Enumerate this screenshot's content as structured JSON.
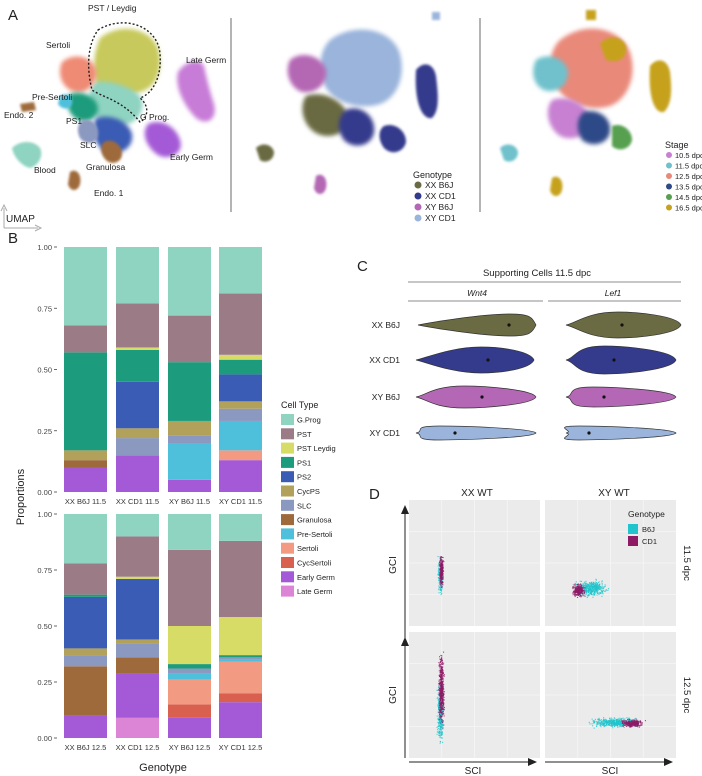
{
  "panels": {
    "A": {
      "letter": "A",
      "axis_label": "UMAP",
      "cluster_labels": [
        {
          "key": "pst",
          "text": "PST / Leydig"
        },
        {
          "key": "sertoli",
          "text": "Sertoli"
        },
        {
          "key": "late_germ",
          "text": "Late Germ"
        },
        {
          "key": "pre_sertoli",
          "text": "Pre-Sertoli"
        },
        {
          "key": "endo2",
          "text": "Endo. 2"
        },
        {
          "key": "ps1",
          "text": "PS1"
        },
        {
          "key": "gprog",
          "text": "G Prog."
        },
        {
          "key": "slc",
          "text": "SLC"
        },
        {
          "key": "granulosa",
          "text": "Granulosa"
        },
        {
          "key": "blood",
          "text": "Blood"
        },
        {
          "key": "early_germ",
          "text": "Early Germ"
        },
        {
          "key": "endo1",
          "text": "Endo. 1"
        }
      ],
      "genotype_legend": {
        "title": "Genotype",
        "items": [
          {
            "label": "XX B6J",
            "color": "#6b6b43"
          },
          {
            "label": "XX CD1",
            "color": "#343a8c"
          },
          {
            "label": "XY B6J",
            "color": "#b467b4"
          },
          {
            "label": "XY CD1",
            "color": "#9ab4dc"
          }
        ]
      },
      "stage_legend": {
        "title": "Stage",
        "items": [
          {
            "label": "10.5 dpc",
            "color": "#c881d2"
          },
          {
            "label": "11.5 dpc",
            "color": "#6fc1cc"
          },
          {
            "label": "12.5 dpc",
            "color": "#e9897a"
          },
          {
            "label": "13.5 dpc",
            "color": "#2f4a87"
          },
          {
            "label": "14.5 dpc",
            "color": "#57a04f"
          },
          {
            "label": "16.5 dpc",
            "color": "#c6a21d"
          }
        ]
      }
    },
    "B": {
      "letter": "B",
      "chart_data": {
        "type": "bar",
        "stacked": true,
        "ylabel": "Proportions",
        "xlabel": "Genotype",
        "ylim": [
          0,
          1
        ],
        "yticks": [
          "0.00",
          "0.25",
          "0.50",
          "0.75",
          "1.00"
        ],
        "legend_title": "Cell Type",
        "legend_position": "right",
        "legend": [
          {
            "label": "G.Prog",
            "color": "#8fd3c1"
          },
          {
            "label": "PST",
            "color": "#9b7b86"
          },
          {
            "label": "PST Leydig",
            "color": "#d6dc66"
          },
          {
            "label": "PS1",
            "color": "#1c9c7c"
          },
          {
            "label": "PS2",
            "color": "#3a5cb4"
          },
          {
            "label": "CycPS",
            "color": "#b1a15a"
          },
          {
            "label": "SLC",
            "color": "#8b98bf"
          },
          {
            "label": "Granulosa",
            "color": "#9f6a3b"
          },
          {
            "label": "Pre-Sertoli",
            "color": "#4fc0dc"
          },
          {
            "label": "Sertoli",
            "color": "#f39a83"
          },
          {
            "label": "CycSertoli",
            "color": "#d9604f"
          },
          {
            "label": "Early Germ",
            "color": "#a45ad6"
          },
          {
            "label": "Late Germ",
            "color": "#dc84d6"
          }
        ],
        "panels": [
          {
            "categories": [
              "XX B6J 11.5",
              "XX CD1 11.5",
              "XY B6J 11.5",
              "XY CD1 11.5"
            ],
            "series": [
              {
                "name": "Early Germ",
                "values": [
                  0.1,
                  0.15,
                  0.05,
                  0.13
                ]
              },
              {
                "name": "Sertoli",
                "values": [
                  0.0,
                  0.0,
                  0.0,
                  0.04
                ]
              },
              {
                "name": "Pre-Sertoli",
                "values": [
                  0.0,
                  0.0,
                  0.15,
                  0.12
                ]
              },
              {
                "name": "Granulosa",
                "values": [
                  0.03,
                  0.0,
                  0.0,
                  0.0
                ]
              },
              {
                "name": "SLC",
                "values": [
                  0.0,
                  0.07,
                  0.03,
                  0.05
                ]
              },
              {
                "name": "CycPS",
                "values": [
                  0.04,
                  0.04,
                  0.06,
                  0.03
                ]
              },
              {
                "name": "PS2",
                "values": [
                  0.0,
                  0.19,
                  0.0,
                  0.11
                ]
              },
              {
                "name": "PS1",
                "values": [
                  0.4,
                  0.13,
                  0.24,
                  0.06
                ]
              },
              {
                "name": "PST Leydig",
                "values": [
                  0.0,
                  0.01,
                  0.0,
                  0.02
                ]
              },
              {
                "name": "PST",
                "values": [
                  0.11,
                  0.18,
                  0.19,
                  0.25
                ]
              },
              {
                "name": "G.Prog",
                "values": [
                  0.32,
                  0.23,
                  0.28,
                  0.19
                ]
              }
            ]
          },
          {
            "categories": [
              "XX B6J 12.5",
              "XX CD1 12.5",
              "XY B6J 12.5",
              "XY CD1 12.5"
            ],
            "series": [
              {
                "name": "Late Germ",
                "values": [
                  0.0,
                  0.09,
                  0.0,
                  0.0
                ]
              },
              {
                "name": "Early Germ",
                "values": [
                  0.1,
                  0.2,
                  0.09,
                  0.16
                ]
              },
              {
                "name": "CycSertoli",
                "values": [
                  0.0,
                  0.0,
                  0.06,
                  0.04
                ]
              },
              {
                "name": "Sertoli",
                "values": [
                  0.0,
                  0.0,
                  0.11,
                  0.14
                ]
              },
              {
                "name": "Pre-Sertoli",
                "values": [
                  0.0,
                  0.0,
                  0.03,
                  0.01
                ]
              },
              {
                "name": "Granulosa",
                "values": [
                  0.22,
                  0.07,
                  0.0,
                  0.0
                ]
              },
              {
                "name": "SLC",
                "values": [
                  0.05,
                  0.06,
                  0.02,
                  0.01
                ]
              },
              {
                "name": "CycPS",
                "values": [
                  0.03,
                  0.02,
                  0.0,
                  0.0
                ]
              },
              {
                "name": "PS2",
                "values": [
                  0.23,
                  0.27,
                  0.0,
                  0.0
                ]
              },
              {
                "name": "PS1",
                "values": [
                  0.01,
                  0.0,
                  0.02,
                  0.01
                ]
              },
              {
                "name": "PST Leydig",
                "values": [
                  0.0,
                  0.01,
                  0.17,
                  0.17
                ]
              },
              {
                "name": "PST",
                "values": [
                  0.14,
                  0.18,
                  0.34,
                  0.34
                ]
              },
              {
                "name": "G.Prog",
                "values": [
                  0.22,
                  0.1,
                  0.16,
                  0.12
                ]
              }
            ]
          }
        ]
      }
    },
    "C": {
      "letter": "C",
      "title": "Supporting Cells 11.5 dpc",
      "genes": [
        "Wnt4",
        "Lef1"
      ],
      "rows": [
        {
          "label": "XX B6J",
          "color": "#6b6b43"
        },
        {
          "label": "XX CD1",
          "color": "#343a8c"
        },
        {
          "label": "XY B6J",
          "color": "#b467b4"
        },
        {
          "label": "XY CD1",
          "color": "#9ab4dc"
        }
      ]
    },
    "D": {
      "letter": "D",
      "columns": [
        "XX WT",
        "XY WT"
      ],
      "rows": [
        "11.5 dpc",
        "12.5 dpc"
      ],
      "ylabel": "GCI",
      "xlabel": "SCI",
      "legend": {
        "title": "Genotype",
        "items": [
          {
            "label": "B6J",
            "color": "#21c4cc"
          },
          {
            "label": "CD1",
            "color": "#8e1a66"
          }
        ]
      }
    }
  }
}
